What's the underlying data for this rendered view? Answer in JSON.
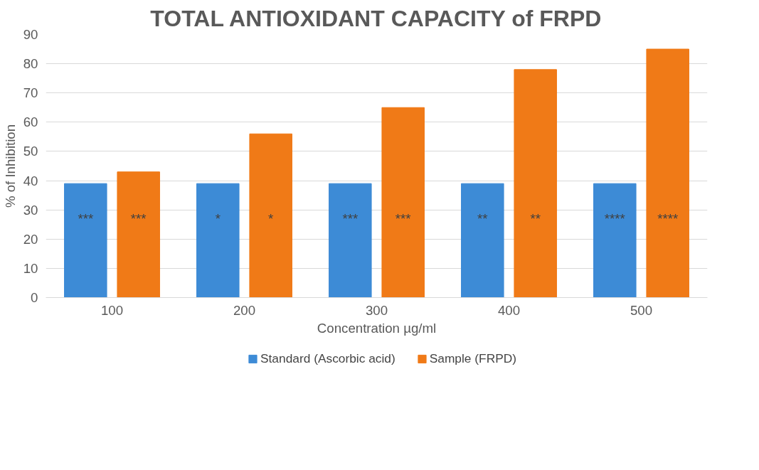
{
  "chart_data": {
    "type": "bar",
    "title": "TOTAL ANTIOXIDANT CAPACITY of FRPD",
    "xlabel": "Concentration µg/ml",
    "ylabel": "% of Inhibition",
    "categories": [
      "100",
      "200",
      "300",
      "400",
      "500"
    ],
    "series": [
      {
        "name": "Standard (Ascorbic acid)",
        "color": "#3d8bd6",
        "values": [
          39,
          39,
          39,
          39,
          39
        ]
      },
      {
        "name": "Sample (FRPD)",
        "color": "#f07a17",
        "values": [
          43,
          56,
          65,
          78,
          85
        ]
      }
    ],
    "ylim": [
      0,
      90
    ],
    "yticks": [
      0,
      10,
      20,
      30,
      40,
      50,
      60,
      70,
      80,
      90
    ],
    "grid": "y",
    "legend": "bottom",
    "annotations": [
      "***",
      "***",
      "*",
      "*",
      "***",
      "***",
      "**",
      "**",
      "****",
      "****"
    ]
  }
}
